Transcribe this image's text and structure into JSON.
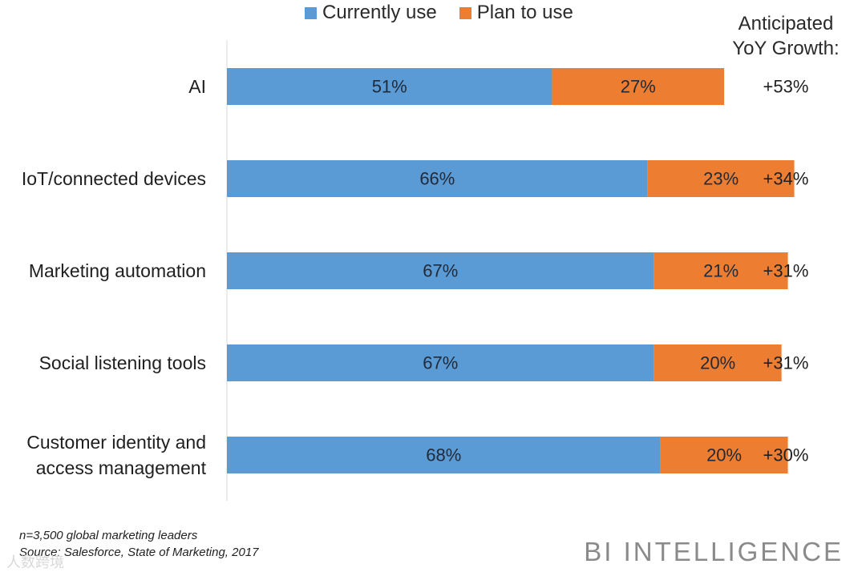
{
  "chart_data": {
    "type": "bar",
    "orientation": "horizontal",
    "stacked": true,
    "categories": [
      "AI",
      "IoT/connected devices",
      "Marketing automation",
      "Social listening tools",
      "Customer identity and access management"
    ],
    "category_lines": [
      [
        "AI"
      ],
      [
        "IoT/connected devices"
      ],
      [
        "Marketing automation"
      ],
      [
        "Social listening tools"
      ],
      [
        "Customer identity and",
        "access management"
      ]
    ],
    "series": [
      {
        "name": "Currently use",
        "color": "#5B9BD5",
        "values": [
          51,
          66,
          67,
          67,
          68
        ],
        "labels": [
          "51%",
          "66%",
          "67%",
          "67%",
          "68%"
        ]
      },
      {
        "name": "Plan to use",
        "color": "#ED7D31",
        "values": [
          27,
          23,
          21,
          20,
          20
        ],
        "labels": [
          "27%",
          "23%",
          "21%",
          "20%",
          "20%"
        ]
      }
    ],
    "growth_header": [
      "Anticipated",
      "YoY Growth:"
    ],
    "growth": [
      "+53%",
      "+34%",
      "+31%",
      "+31%",
      "+30%"
    ],
    "xlim": [
      0,
      100
    ],
    "grid": false,
    "legend_position": "top"
  },
  "footnotes": {
    "sample": "n=3,500 global marketing leaders",
    "source": "Source: Salesforce, State of Marketing, 2017"
  },
  "brand": "BI INTELLIGENCE",
  "watermark": "人数跨境"
}
